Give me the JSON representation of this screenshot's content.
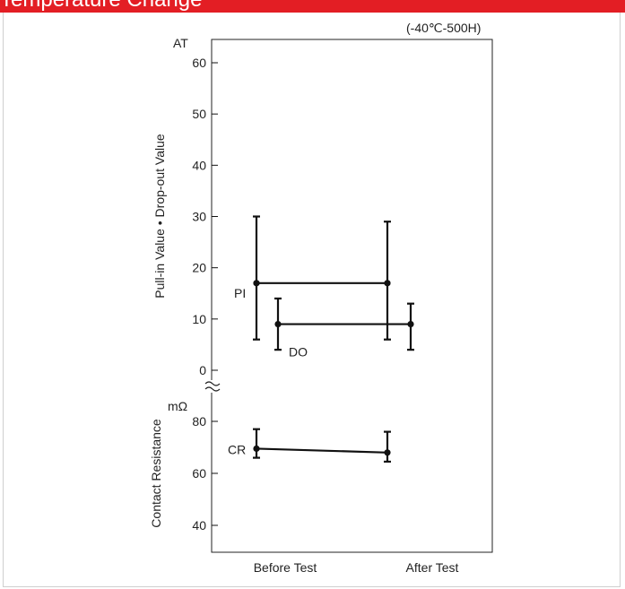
{
  "header": {
    "title": "Temperature Change"
  },
  "chart_data": {
    "type": "scatter",
    "condition": "(-40℃-500H)",
    "xlabel_categories": [
      "Before Test",
      "After Test"
    ],
    "panels": [
      {
        "ylabel": "Pull-in Value • Drop-out Value",
        "unit": "AT",
        "ylim": [
          0,
          60
        ],
        "yticks": [
          0,
          10,
          20,
          30,
          40,
          50,
          60
        ],
        "series": [
          {
            "name": "PI",
            "points": [
              {
                "x": "Before Test",
                "mean": 17,
                "max": 30,
                "min": 6
              },
              {
                "x": "After Test",
                "mean": 17,
                "max": 29,
                "min": 6
              }
            ]
          },
          {
            "name": "DO",
            "points": [
              {
                "x": "Before Test",
                "mean": 9,
                "max": 14,
                "min": 4
              },
              {
                "x": "After Test",
                "mean": 9,
                "max": 13,
                "min": 4
              }
            ]
          }
        ]
      },
      {
        "ylabel": "Contact Resistance",
        "unit": "mΩ",
        "ylim": [
          40,
          80
        ],
        "yticks": [
          40,
          60,
          80
        ],
        "series": [
          {
            "name": "CR",
            "points": [
              {
                "x": "Before Test",
                "mean": 69.5,
                "max": 77,
                "min": 66
              },
              {
                "x": "After Test",
                "mean": 68,
                "max": 76,
                "min": 64.5
              }
            ]
          }
        ]
      }
    ]
  },
  "colors": {
    "accent": "#e31e24",
    "ink": "#111111"
  }
}
